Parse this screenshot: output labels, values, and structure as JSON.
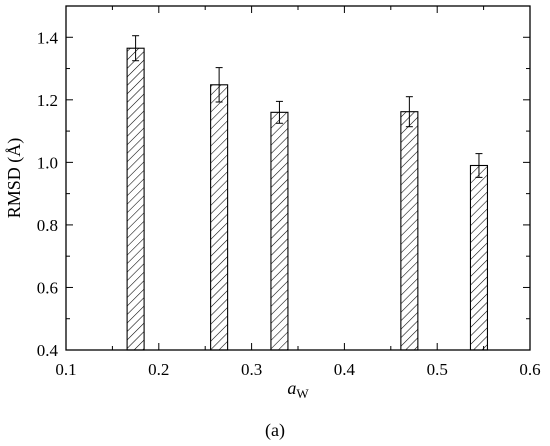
{
  "chart_data": {
    "type": "bar",
    "x": [
      0.175,
      0.265,
      0.33,
      0.47,
      0.545
    ],
    "values": [
      1.365,
      1.248,
      1.16,
      1.162,
      0.99
    ],
    "errors": [
      0.04,
      0.055,
      0.035,
      0.048,
      0.038
    ],
    "xlim": [
      0.1,
      0.6
    ],
    "ylim": [
      0.4,
      1.5
    ],
    "xticks": [
      0.1,
      0.2,
      0.3,
      0.4,
      0.5,
      0.6
    ],
    "yticks": [
      0.4,
      0.6,
      0.8,
      1.0,
      1.2,
      1.4
    ],
    "xtick_labels": [
      "0.1",
      "0.2",
      "0.3",
      "0.4",
      "0.5",
      "0.6"
    ],
    "ytick_labels": [
      "0.4",
      "0.6",
      "0.8",
      "1.0",
      "1.2",
      "1.4"
    ],
    "xlabel": {
      "main": "a",
      "sub": "W"
    },
    "ylabel": "RMSD (Å)",
    "panel_label": "(a)",
    "bar_fill": "hatched",
    "grid": false,
    "colors": {
      "bar_stroke": "#000000",
      "hatch": "#000000",
      "background": "#ffffff"
    }
  }
}
